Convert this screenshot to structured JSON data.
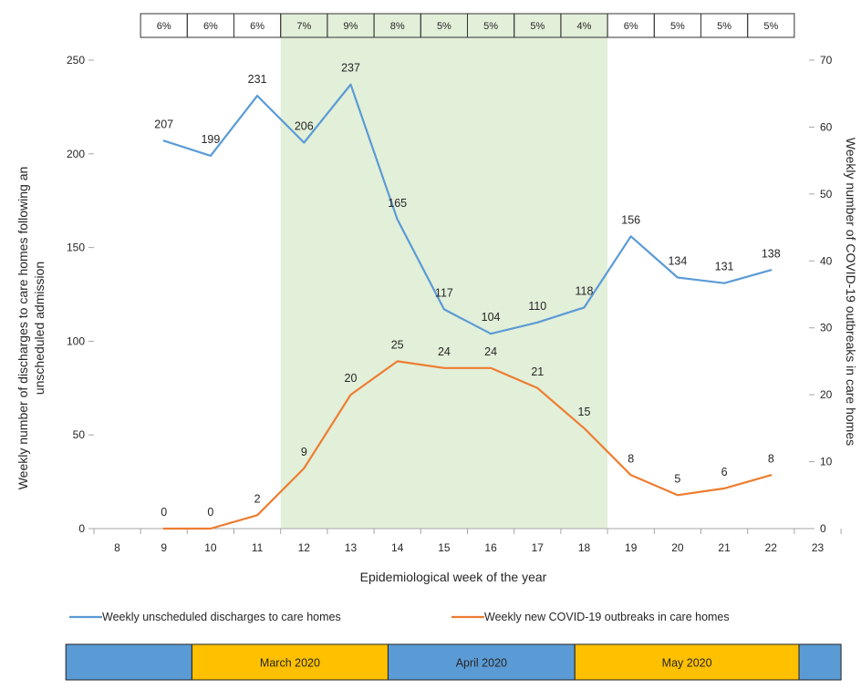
{
  "chart_data": {
    "type": "line",
    "x": [
      8,
      9,
      10,
      11,
      12,
      13,
      14,
      15,
      16,
      17,
      18,
      19,
      20,
      21,
      22,
      23
    ],
    "xlabel": "Epidemiological week of the year",
    "ylabel": "Weekly number of discharges to care homes following an unscheduled admission",
    "ylabel_lines": [
      "Weekly number of discharges to care homes following an",
      "unscheduled admission"
    ],
    "y2label": "Weekly number of COVID-19 outbreaks in care homes",
    "ylim": [
      0,
      250
    ],
    "y_ticks": [
      0,
      50,
      100,
      150,
      200,
      250
    ],
    "y2lim": [
      0,
      70
    ],
    "y2_ticks": [
      0,
      10,
      20,
      30,
      40,
      50,
      60,
      70
    ],
    "grid": false,
    "legend_position": "bottom",
    "shaded_region": {
      "from_week": 11.5,
      "to_week": 18.5,
      "color": "#e2efd9"
    },
    "series": [
      {
        "name": "Weekly unscheduled discharges to care homes",
        "axis": "left",
        "color": "#5b9bd5",
        "x": [
          9,
          10,
          11,
          12,
          13,
          14,
          15,
          16,
          17,
          18,
          19,
          20,
          21,
          22
        ],
        "values": [
          207,
          199,
          231,
          206,
          237,
          165,
          117,
          104,
          110,
          118,
          156,
          134,
          131,
          138
        ]
      },
      {
        "name": "Weekly new COVID-19 outbreaks in care homes",
        "axis": "right",
        "color": "#ed7d31",
        "x": [
          9,
          10,
          11,
          12,
          13,
          14,
          15,
          16,
          17,
          18,
          19,
          20,
          21,
          22
        ],
        "values": [
          0,
          0,
          2,
          9,
          20,
          25,
          24,
          24,
          21,
          15,
          8,
          5,
          6,
          8
        ]
      }
    ],
    "percent_table": {
      "weeks": [
        9,
        10,
        11,
        12,
        13,
        14,
        15,
        16,
        17,
        18,
        19,
        20,
        21,
        22
      ],
      "values": [
        "6%",
        "6%",
        "6%",
        "7%",
        "9%",
        "8%",
        "5%",
        "5%",
        "5%",
        "4%",
        "6%",
        "5%",
        "5%",
        "5%"
      ]
    },
    "month_bar": {
      "blue_color": "#5b9bd5",
      "yellow_color": "#ffc000",
      "segments": [
        {
          "label": "",
          "from_week": 6.9,
          "to_week": 9.6,
          "color": "#5b9bd5"
        },
        {
          "label": "March 2020",
          "from_week": 9.6,
          "to_week": 13.8,
          "color": "#ffc000"
        },
        {
          "label": "April 2020",
          "from_week": 13.8,
          "to_week": 17.8,
          "color": "#5b9bd5"
        },
        {
          "label": "May 2020",
          "from_week": 17.8,
          "to_week": 22.6,
          "color": "#ffc000"
        },
        {
          "label": "",
          "from_week": 22.6,
          "to_week": 23.5,
          "color": "#5b9bd5"
        }
      ]
    }
  }
}
